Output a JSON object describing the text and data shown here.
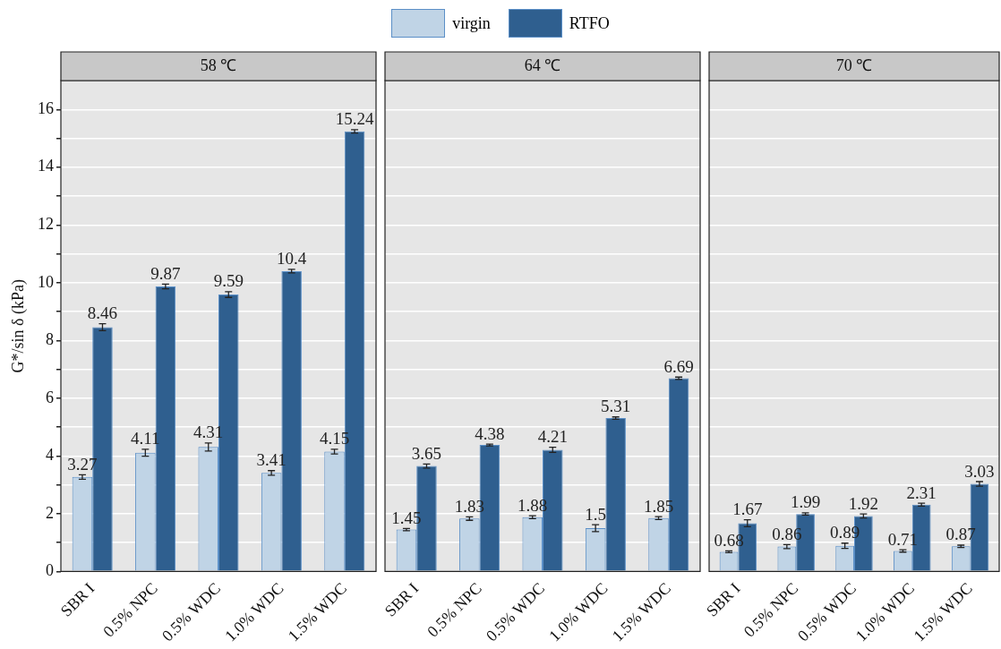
{
  "chart_data": [
    {
      "type": "bar",
      "title": "58 ℃",
      "ylabel": "G*/sin δ (kPa)",
      "categories": [
        "SBR I",
        "0.5% NPC",
        "0.5% WDC",
        "1.0% WDC",
        "1.5% WDC"
      ],
      "legend": "top",
      "grid": "y",
      "data_labels": true,
      "ylim": [
        0,
        17
      ],
      "yticks": [
        0,
        {
          "value": 1,
          "label": null
        },
        2,
        {
          "value": 3,
          "label": null
        },
        4,
        {
          "value": 5,
          "label": null
        },
        6,
        {
          "value": 7,
          "label": null
        },
        8,
        {
          "value": 9,
          "label": null
        },
        10,
        {
          "value": 11,
          "label": null
        },
        12,
        {
          "value": 13,
          "label": null
        },
        14,
        {
          "value": 15,
          "label": null
        },
        16
      ],
      "series": [
        {
          "name": "virgin",
          "color": "#c0d4e6",
          "values": [
            3.27,
            4.11,
            4.31,
            3.41,
            4.15
          ],
          "errors": [
            0.08,
            0.12,
            0.14,
            0.08,
            0.08
          ]
        },
        {
          "name": "RTFO",
          "color": "#2f5f8f",
          "values": [
            8.46,
            9.87,
            9.59,
            10.4,
            15.24
          ],
          "errors": [
            0.12,
            0.08,
            0.1,
            0.06,
            0.06
          ]
        }
      ]
    },
    {
      "type": "bar",
      "title": "64 ℃",
      "categories": [
        "SBR I",
        "0.5% NPC",
        "0.5% WDC",
        "1.0% WDC",
        "1.5% WDC"
      ],
      "grid": "y",
      "data_labels": true,
      "tick_labels": "x",
      "ylim": [
        0,
        17
      ],
      "yticks": [
        0,
        {
          "value": 1,
          "label": null
        },
        2,
        {
          "value": 3,
          "label": null
        },
        4,
        {
          "value": 5,
          "label": null
        },
        6,
        {
          "value": 7,
          "label": null
        },
        8,
        {
          "value": 9,
          "label": null
        },
        10,
        {
          "value": 11,
          "label": null
        },
        12,
        {
          "value": 13,
          "label": null
        },
        14,
        {
          "value": 15,
          "label": null
        },
        16
      ],
      "series": [
        {
          "color": "#c0d4e6",
          "values": [
            1.45,
            1.83,
            1.88,
            1.5,
            1.85
          ],
          "errors": [
            0.04,
            0.06,
            0.05,
            0.12,
            0.05
          ]
        },
        {
          "color": "#2f5f8f",
          "values": [
            3.65,
            4.38,
            4.21,
            5.31,
            6.69
          ],
          "errors": [
            0.07,
            0.03,
            0.09,
            0.04,
            0.04
          ]
        }
      ]
    },
    {
      "type": "bar",
      "title": "70 ℃",
      "categories": [
        "SBR I",
        "0.5% NPC",
        "0.5% WDC",
        "1.0% WDC",
        "1.5% WDC"
      ],
      "grid": "y",
      "data_labels": true,
      "tick_labels": "x",
      "ylim": [
        0,
        17
      ],
      "yticks": [
        0,
        {
          "value": 1,
          "label": null
        },
        2,
        {
          "value": 3,
          "label": null
        },
        4,
        {
          "value": 5,
          "label": null
        },
        6,
        {
          "value": 7,
          "label": null
        },
        8,
        {
          "value": 9,
          "label": null
        },
        10,
        {
          "value": 11,
          "label": null
        },
        12,
        {
          "value": 13,
          "label": null
        },
        14,
        {
          "value": 15,
          "label": null
        },
        16
      ],
      "series": [
        {
          "color": "#c0d4e6",
          "values": [
            0.68,
            0.86,
            0.89,
            0.71,
            0.87
          ],
          "errors": [
            0.03,
            0.07,
            0.09,
            0.04,
            0.04
          ]
        },
        {
          "color": "#2f5f8f",
          "values": [
            1.67,
            1.99,
            1.92,
            2.31,
            3.03
          ],
          "errors": [
            0.12,
            0.04,
            0.07,
            0.05,
            0.08
          ]
        }
      ]
    }
  ]
}
